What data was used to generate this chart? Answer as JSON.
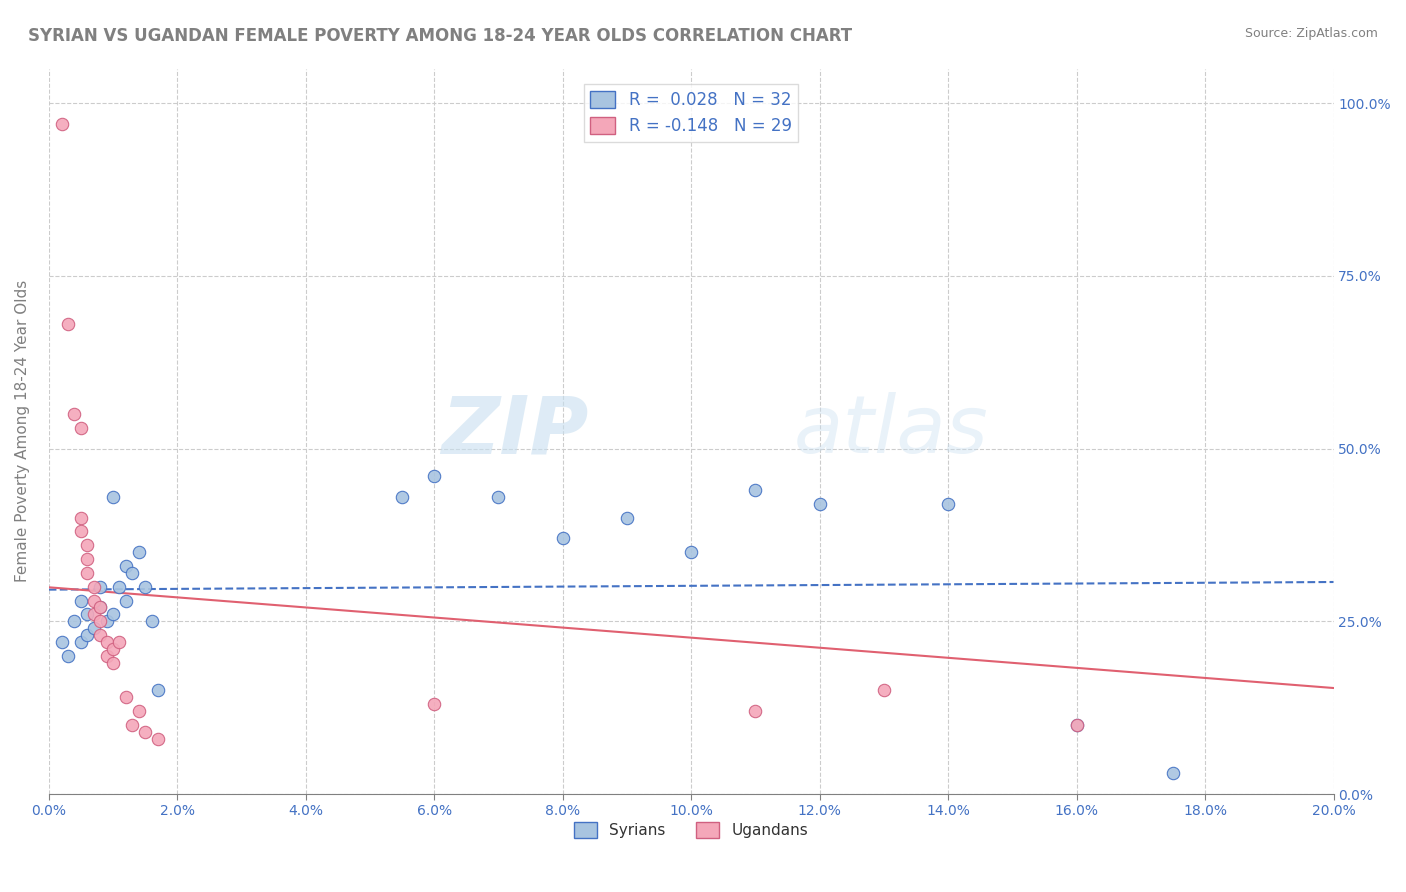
{
  "title": "SYRIAN VS UGANDAN FEMALE POVERTY AMONG 18-24 YEAR OLDS CORRELATION CHART",
  "source": "Source: ZipAtlas.com",
  "ylabel": "Female Poverty Among 18-24 Year Olds",
  "legend_syrian": "R =  0.028   N = 32",
  "legend_ugandan": "R = -0.148   N = 29",
  "syrian_color": "#a8c4e0",
  "ugandan_color": "#f4a7b9",
  "syrian_line_color": "#4472c4",
  "ugandan_line_color": "#e06070",
  "ugandan_edge_color": "#d06080",
  "watermark_zip": "ZIP",
  "watermark_atlas": "atlas",
  "syrians_label": "Syrians",
  "ugandans_label": "Ugandans",
  "syrian_R": 0.028,
  "ugandan_R": -0.148,
  "syrian_N": 32,
  "ugandan_N": 29,
  "syrian_scatter": [
    [
      0.002,
      0.22
    ],
    [
      0.003,
      0.2
    ],
    [
      0.004,
      0.25
    ],
    [
      0.005,
      0.28
    ],
    [
      0.005,
      0.22
    ],
    [
      0.006,
      0.26
    ],
    [
      0.006,
      0.23
    ],
    [
      0.007,
      0.24
    ],
    [
      0.008,
      0.27
    ],
    [
      0.008,
      0.3
    ],
    [
      0.009,
      0.25
    ],
    [
      0.01,
      0.43
    ],
    [
      0.01,
      0.26
    ],
    [
      0.011,
      0.3
    ],
    [
      0.012,
      0.33
    ],
    [
      0.012,
      0.28
    ],
    [
      0.013,
      0.32
    ],
    [
      0.014,
      0.35
    ],
    [
      0.015,
      0.3
    ],
    [
      0.016,
      0.25
    ],
    [
      0.017,
      0.15
    ],
    [
      0.055,
      0.43
    ],
    [
      0.06,
      0.46
    ],
    [
      0.07,
      0.43
    ],
    [
      0.08,
      0.37
    ],
    [
      0.09,
      0.4
    ],
    [
      0.1,
      0.35
    ],
    [
      0.11,
      0.44
    ],
    [
      0.12,
      0.42
    ],
    [
      0.14,
      0.42
    ],
    [
      0.16,
      0.1
    ],
    [
      0.175,
      0.03
    ]
  ],
  "ugandan_scatter": [
    [
      0.002,
      0.97
    ],
    [
      0.003,
      0.68
    ],
    [
      0.004,
      0.55
    ],
    [
      0.005,
      0.53
    ],
    [
      0.005,
      0.4
    ],
    [
      0.005,
      0.38
    ],
    [
      0.006,
      0.36
    ],
    [
      0.006,
      0.34
    ],
    [
      0.006,
      0.32
    ],
    [
      0.007,
      0.3
    ],
    [
      0.007,
      0.28
    ],
    [
      0.007,
      0.26
    ],
    [
      0.008,
      0.27
    ],
    [
      0.008,
      0.25
    ],
    [
      0.008,
      0.23
    ],
    [
      0.009,
      0.22
    ],
    [
      0.009,
      0.2
    ],
    [
      0.01,
      0.21
    ],
    [
      0.01,
      0.19
    ],
    [
      0.011,
      0.22
    ],
    [
      0.012,
      0.14
    ],
    [
      0.013,
      0.1
    ],
    [
      0.014,
      0.12
    ],
    [
      0.015,
      0.09
    ],
    [
      0.017,
      0.08
    ],
    [
      0.06,
      0.13
    ],
    [
      0.11,
      0.12
    ],
    [
      0.13,
      0.15
    ],
    [
      0.16,
      0.1
    ]
  ],
  "xmin": 0.0,
  "xmax": 0.2,
  "ymin": 0.0,
  "ymax": 1.05,
  "yticks": [
    0.0,
    0.25,
    0.5,
    0.75,
    1.0
  ],
  "tick_color": "#4472c4",
  "grid_color": "#cccccc",
  "title_color": "#808080",
  "source_color": "#808080",
  "ylabel_color": "#808080"
}
